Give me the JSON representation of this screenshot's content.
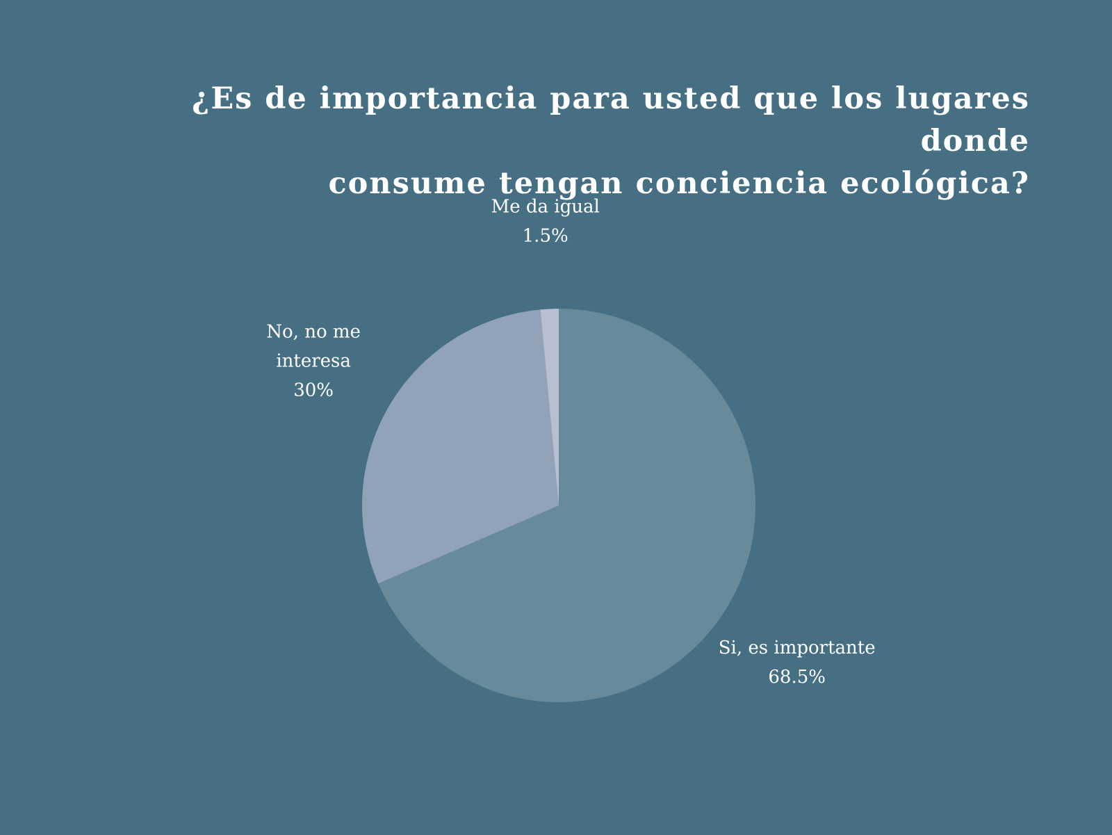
{
  "chart_data": {
    "type": "pie",
    "title_lines": [
      "¿Es de importancia para usted que los lugares donde",
      "consume tengan conciencia ecológica?"
    ],
    "slices": [
      {
        "label_lines": [
          "Si, es importante"
        ],
        "value": 68.5,
        "value_label": "68.5%",
        "color": "#678b9a"
      },
      {
        "label_lines": [
          "No, no me",
          "interesa"
        ],
        "value": 30,
        "value_label": "30%",
        "color": "#92a3b9"
      },
      {
        "label_lines": [
          "Me da igual"
        ],
        "value": 1.5,
        "value_label": "1.5%",
        "color": "#b7bfd1"
      }
    ],
    "start_angle": "12 o'clock",
    "direction": "clockwise",
    "legend": "none"
  },
  "colors": {
    "background": "#466f84",
    "text": "#ffffff"
  }
}
